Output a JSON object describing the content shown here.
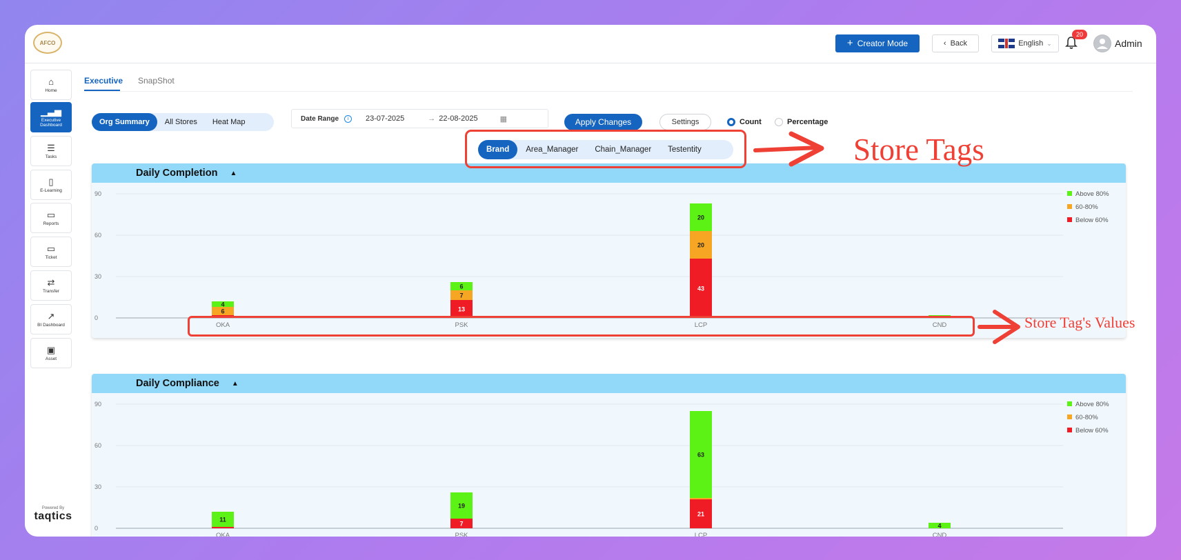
{
  "header": {
    "logo_text": "AFCO",
    "creator_mode_label": "Creator Mode",
    "back_label": "Back",
    "language": "English",
    "notification_count": "20",
    "user_name": "Admin"
  },
  "sidebar": {
    "items": [
      {
        "label": "Home",
        "icon": "home-icon",
        "glyph": "⌂"
      },
      {
        "label": "Executive Dashboard",
        "icon": "bar-chart-icon",
        "glyph": "▁▃▅"
      },
      {
        "label": "Tasks",
        "icon": "task-list-icon",
        "glyph": "☰"
      },
      {
        "label": "E-Learning",
        "icon": "book-icon",
        "glyph": "▯"
      },
      {
        "label": "Reports",
        "icon": "monitor-icon",
        "glyph": "▭"
      },
      {
        "label": "Ticket",
        "icon": "ticket-icon",
        "glyph": "▭"
      },
      {
        "label": "Transfer",
        "icon": "transfer-icon",
        "glyph": "⇄"
      },
      {
        "label": "BI Dashboard",
        "icon": "analytics-icon",
        "glyph": "↗"
      },
      {
        "label": "Asset",
        "icon": "asset-icon",
        "glyph": "▣"
      }
    ],
    "powered_by": "Powered By",
    "brand": "taqtics"
  },
  "tabs": [
    "Executive",
    "SnapShot"
  ],
  "views": [
    "Org Summary",
    "All Stores",
    "Heat Map"
  ],
  "date_range": {
    "label": "Date Range",
    "from": "23-07-2025",
    "to": "22-08-2025"
  },
  "apply_label": "Apply Changes",
  "settings_label": "Settings",
  "mode": {
    "count": "Count",
    "percentage": "Percentage",
    "selected": "count"
  },
  "store_tags": [
    "Brand",
    "Area_Manager",
    "Chain_Manager",
    "Testentity"
  ],
  "annotations": {
    "store_tags": "Store Tags",
    "store_tag_values": "Store Tag's Values"
  },
  "colors": {
    "primary": "#1565c0",
    "above80": "#5cf216",
    "mid": "#f6a623",
    "below60": "#ef1b25",
    "annotation": "#ef4036",
    "chart_header": "#92d8f8"
  },
  "chart_data": [
    {
      "type": "bar",
      "title": "Daily Completion",
      "categories": [
        "OKA",
        "PSK",
        "LCP",
        "CND"
      ],
      "series": [
        {
          "name": "Below 60%",
          "values": [
            2,
            13,
            43,
            0
          ]
        },
        {
          "name": "60-80%",
          "values": [
            6,
            7,
            20,
            1
          ]
        },
        {
          "name": "Above 80%",
          "values": [
            4,
            6,
            20,
            1
          ]
        }
      ],
      "ylim": [
        0,
        90
      ],
      "yticks": [
        0,
        30,
        60,
        90
      ],
      "legend": "top-right",
      "grid": true
    },
    {
      "type": "bar",
      "title": "Daily Compliance",
      "categories": [
        "OKA",
        "PSK",
        "LCP",
        "CND"
      ],
      "series": [
        {
          "name": "Below 60%",
          "values": [
            1,
            7,
            21,
            0
          ]
        },
        {
          "name": "60-80%",
          "values": [
            0,
            0,
            1,
            0
          ]
        },
        {
          "name": "Above 80%",
          "values": [
            11,
            19,
            63,
            4
          ]
        }
      ],
      "ylim": [
        0,
        90
      ],
      "yticks": [
        0,
        30,
        60,
        90
      ],
      "legend": "top-right",
      "grid": true
    }
  ]
}
